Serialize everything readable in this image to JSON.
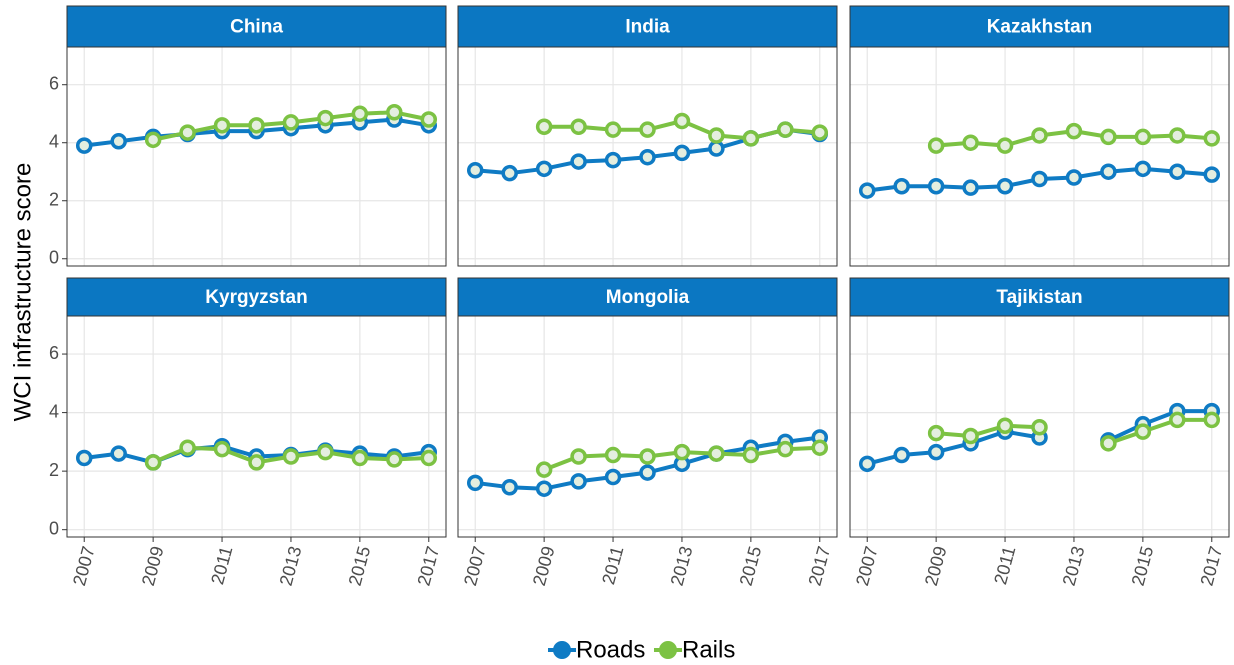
{
  "chart_data": {
    "type": "line",
    "ylabel": "WCI infrastructure score",
    "x": [
      2007,
      2008,
      2009,
      2010,
      2011,
      2012,
      2013,
      2014,
      2015,
      2016,
      2017
    ],
    "xlim": [
      2006.5,
      2017.5
    ],
    "xticks": [
      2007,
      2009,
      2011,
      2013,
      2015,
      2017
    ],
    "ylim": [
      -0.25,
      7.3
    ],
    "yticks": [
      0,
      2,
      4,
      6
    ],
    "grid": true,
    "legend": "bottom",
    "series": [
      {
        "name": "Roads",
        "color": "#0f7bc4"
      },
      {
        "name": "Rails",
        "color": "#7cc243"
      }
    ],
    "facets": [
      {
        "title": "China",
        "values": [
          [
            3.9,
            4.05,
            4.2,
            4.3,
            4.4,
            4.4,
            4.5,
            4.6,
            4.7,
            4.8,
            4.6
          ],
          [
            null,
            null,
            4.1,
            4.35,
            4.6,
            4.6,
            4.7,
            4.85,
            5.0,
            5.05,
            4.8
          ]
        ]
      },
      {
        "title": "India",
        "values": [
          [
            3.05,
            2.95,
            3.1,
            3.35,
            3.4,
            3.5,
            3.65,
            3.8,
            4.15,
            4.45,
            4.3
          ],
          [
            null,
            null,
            4.55,
            4.55,
            4.45,
            4.45,
            4.75,
            4.25,
            4.15,
            4.45,
            4.35
          ]
        ]
      },
      {
        "title": "Kazakhstan",
        "values": [
          [
            2.35,
            2.5,
            2.5,
            2.45,
            2.5,
            2.75,
            2.8,
            3.0,
            3.1,
            3.0,
            2.9
          ],
          [
            null,
            null,
            3.9,
            4.0,
            3.9,
            4.25,
            4.4,
            4.2,
            4.2,
            4.25,
            4.15
          ]
        ]
      },
      {
        "title": "Kyrgyzstan",
        "values": [
          [
            2.45,
            2.6,
            2.3,
            2.75,
            2.85,
            2.5,
            2.55,
            2.7,
            2.6,
            2.5,
            2.65
          ],
          [
            null,
            null,
            2.3,
            2.8,
            2.75,
            2.3,
            2.5,
            2.65,
            2.45,
            2.4,
            2.45
          ]
        ]
      },
      {
        "title": "Mongolia",
        "values": [
          [
            1.6,
            1.45,
            1.4,
            1.65,
            1.8,
            1.95,
            2.25,
            2.6,
            2.8,
            3.0,
            3.15
          ],
          [
            null,
            null,
            2.05,
            2.5,
            2.55,
            2.5,
            2.65,
            2.6,
            2.55,
            2.75,
            2.8
          ]
        ]
      },
      {
        "title": "Tajikistan",
        "values": [
          [
            2.25,
            2.55,
            2.65,
            2.95,
            3.35,
            3.15,
            null,
            3.05,
            3.6,
            4.05,
            4.05
          ],
          [
            null,
            null,
            3.3,
            3.2,
            3.55,
            3.5,
            null,
            2.95,
            3.35,
            3.75,
            3.75
          ]
        ]
      }
    ]
  }
}
